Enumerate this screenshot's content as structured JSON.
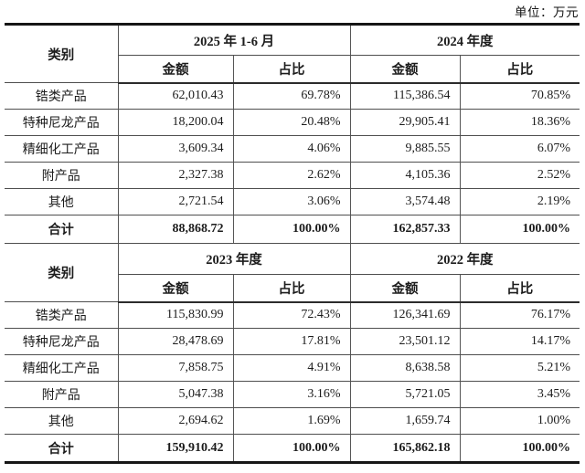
{
  "unit_label": "单位：万元",
  "table": {
    "category_header": "类别",
    "sections": [
      {
        "period_headers": [
          "2025 年 1-6 月",
          "2024 年度"
        ],
        "sub_headers": [
          "金额",
          "占比",
          "金额",
          "占比"
        ],
        "rows": [
          {
            "category": "锆类产品",
            "cells": [
              "62,010.43",
              "69.78%",
              "115,386.54",
              "70.85%"
            ],
            "total": false
          },
          {
            "category": "特种尼龙产品",
            "cells": [
              "18,200.04",
              "20.48%",
              "29,905.41",
              "18.36%"
            ],
            "total": false
          },
          {
            "category": "精细化工产品",
            "cells": [
              "3,609.34",
              "4.06%",
              "9,885.55",
              "6.07%"
            ],
            "total": false
          },
          {
            "category": "附产品",
            "cells": [
              "2,327.38",
              "2.62%",
              "4,105.36",
              "2.52%"
            ],
            "total": false
          },
          {
            "category": "其他",
            "cells": [
              "2,721.54",
              "3.06%",
              "3,574.48",
              "2.19%"
            ],
            "total": false
          },
          {
            "category": "合计",
            "cells": [
              "88,868.72",
              "100.00%",
              "162,857.33",
              "100.00%"
            ],
            "total": true
          }
        ]
      },
      {
        "period_headers": [
          "2023 年度",
          "2022 年度"
        ],
        "sub_headers": [
          "金额",
          "占比",
          "金额",
          "占比"
        ],
        "rows": [
          {
            "category": "锆类产品",
            "cells": [
              "115,830.99",
              "72.43%",
              "126,341.69",
              "76.17%"
            ],
            "total": false
          },
          {
            "category": "特种尼龙产品",
            "cells": [
              "28,478.69",
              "17.81%",
              "23,501.12",
              "14.17%"
            ],
            "total": false
          },
          {
            "category": "精细化工产品",
            "cells": [
              "7,858.75",
              "4.91%",
              "8,638.58",
              "5.21%"
            ],
            "total": false
          },
          {
            "category": "附产品",
            "cells": [
              "5,047.38",
              "3.16%",
              "5,721.05",
              "3.45%"
            ],
            "total": false
          },
          {
            "category": "其他",
            "cells": [
              "2,694.62",
              "1.69%",
              "1,659.74",
              "1.00%"
            ],
            "total": false
          },
          {
            "category": "合计",
            "cells": [
              "159,910.42",
              "100.00%",
              "165,862.18",
              "100.00%"
            ],
            "total": true
          }
        ]
      }
    ]
  }
}
